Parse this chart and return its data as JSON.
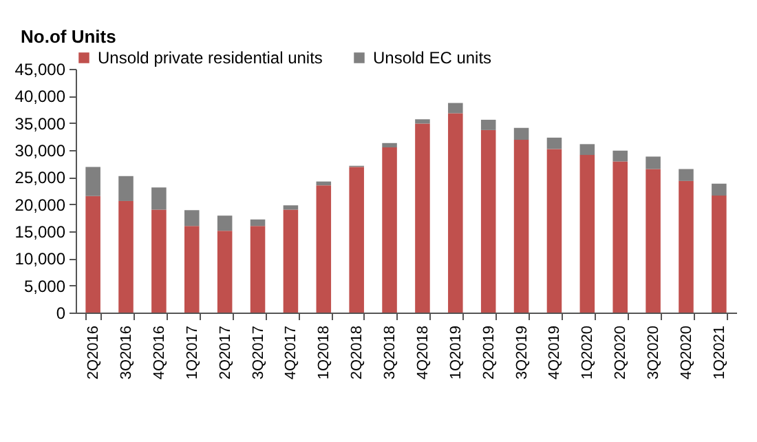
{
  "chart_data": {
    "type": "bar",
    "title": "No.of Units",
    "stacked": true,
    "legend": "top",
    "grid": false,
    "categories": [
      "2Q2016",
      "3Q2016",
      "4Q2016",
      "1Q2017",
      "2Q2017",
      "3Q2017",
      "4Q2017",
      "1Q2018",
      "2Q2018",
      "3Q2018",
      "4Q2018",
      "1Q2019",
      "2Q2019",
      "3Q2019",
      "4Q2019",
      "1Q2020",
      "2Q2020",
      "3Q2020",
      "4Q2020",
      "1Q2021"
    ],
    "series": [
      {
        "name": "Unsold private residential units",
        "color": "#c0504d",
        "values": [
          21500,
          20600,
          19000,
          16000,
          15100,
          16000,
          19000,
          23500,
          26900,
          30500,
          34900,
          36800,
          33700,
          31900,
          30200,
          29100,
          27900,
          26500,
          24300,
          21600
        ]
      },
      {
        "name": "Unsold EC units",
        "color": "#808080",
        "values": [
          5400,
          4600,
          4100,
          2900,
          2800,
          1200,
          800,
          700,
          200,
          800,
          800,
          1900,
          1900,
          2200,
          2100,
          2000,
          2000,
          2300,
          2200,
          2200
        ]
      }
    ],
    "ylim": [
      0,
      45000
    ],
    "yticks": [
      0,
      {
        "value": 5000,
        "label": "5,000"
      },
      {
        "value": 10000,
        "label": "10,000"
      },
      {
        "value": 15000,
        "label": "15,000"
      },
      {
        "value": 20000,
        "label": "20,000"
      },
      {
        "value": 25000,
        "label": "25,000"
      },
      {
        "value": 30000,
        "label": "30,000"
      },
      {
        "value": 35000,
        "label": "35,000"
      },
      {
        "value": 40000,
        "label": "40,000"
      },
      {
        "value": 45000,
        "label": "45,000"
      }
    ]
  }
}
